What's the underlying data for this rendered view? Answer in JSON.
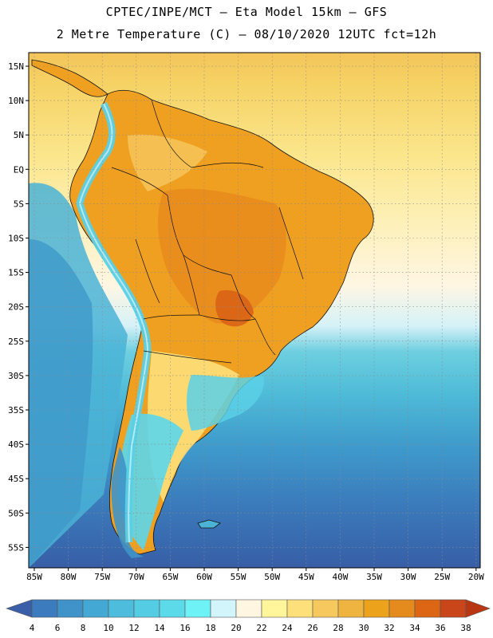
{
  "header": {
    "line1": "CPTEC/INPE/MCT –  Eta Model 15km – GFS",
    "line2": "2 Metre Temperature (C) – 08/10/2020 12UTC fct=12h"
  },
  "map": {
    "lat_labels": [
      "15N",
      "10N",
      "5N",
      "EQ",
      "5S",
      "10S",
      "15S",
      "20S",
      "25S",
      "30S",
      "35S",
      "40S",
      "45S",
      "50S",
      "55S"
    ],
    "lon_labels": [
      "85W",
      "80W",
      "75W",
      "70W",
      "65W",
      "60W",
      "55W",
      "50W",
      "45W",
      "40W",
      "35W",
      "30W",
      "25W",
      "20W"
    ],
    "land_color": "#f0a020",
    "andes_color": "#5ad0e6",
    "ocean_color": "#3b86c2"
  },
  "colorbar": {
    "labels": [
      "4",
      "6",
      "8",
      "10",
      "12",
      "14",
      "16",
      "18",
      "20",
      "22",
      "24",
      "26",
      "28",
      "30",
      "32",
      "34",
      "36",
      "38"
    ],
    "colors": [
      "#3a5fa8",
      "#3c7bbd",
      "#3f93c9",
      "#44a8d4",
      "#4dbcdd",
      "#54cde4",
      "#5ddaea",
      "#6ef2f6",
      "#d2f4fb",
      "#fff6e2",
      "#fff59a",
      "#fde07a",
      "#f6c85e",
      "#efb43f",
      "#eca21b",
      "#e58a1c",
      "#dc6614",
      "#c9461b",
      "#b93613"
    ]
  },
  "chart_data": {
    "type": "heatmap",
    "title": "2 Metre Temperature (C) – 08/10/2020 12UTC fct=12h",
    "lon_range": [
      "85W",
      "20W"
    ],
    "lat_range": [
      "15N",
      "55S"
    ],
    "colorbar_units": "C",
    "colorbar_levels": [
      4,
      6,
      8,
      10,
      12,
      14,
      16,
      18,
      20,
      22,
      24,
      26,
      28,
      30,
      32,
      34,
      36,
      38
    ],
    "grid": true
  }
}
